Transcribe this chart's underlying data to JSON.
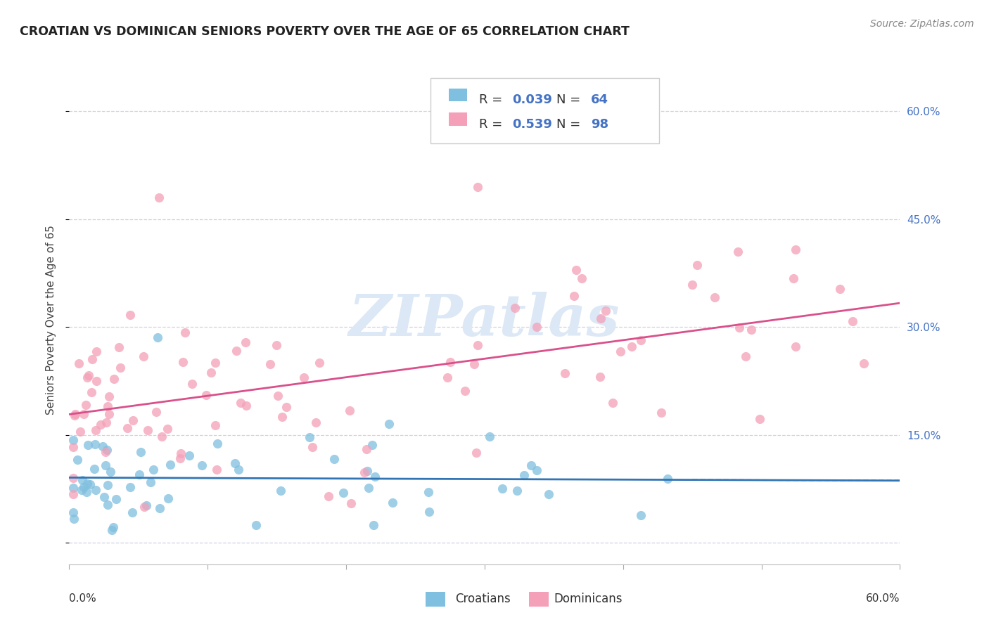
{
  "title": "CROATIAN VS DOMINICAN SENIORS POVERTY OVER THE AGE OF 65 CORRELATION CHART",
  "source": "Source: ZipAtlas.com",
  "ylabel": "Seniors Poverty Over the Age of 65",
  "xlim": [
    0.0,
    0.6
  ],
  "ylim": [
    -0.03,
    0.65
  ],
  "ytick_vals": [
    0.0,
    0.15,
    0.3,
    0.45,
    0.6
  ],
  "ytick_labels": [
    "",
    "15.0%",
    "30.0%",
    "45.0%",
    "60.0%"
  ],
  "xtick_vals": [
    0.0,
    0.1,
    0.2,
    0.3,
    0.4,
    0.5,
    0.6
  ],
  "croatian_R": 0.039,
  "croatian_N": 64,
  "dominican_R": 0.539,
  "dominican_N": 98,
  "croatian_color": "#7fbfdf",
  "dominican_color": "#f4a0b8",
  "croatian_line_color": "#3275b5",
  "dominican_line_color": "#d9508a",
  "background_color": "#ffffff",
  "grid_color": "#d0d0e8",
  "right_label_color": "#4472c4",
  "title_color": "#222222",
  "source_color": "#888888",
  "watermark_text": "ZIPatlas",
  "watermark_color": "#dce8f5",
  "legend_label_croatian": "Croatians",
  "legend_label_dominican": "Dominicans",
  "legend_R_croatian": "0.039",
  "legend_N_croatian": "64",
  "legend_R_dominican": "0.539",
  "legend_N_dominican": "98"
}
